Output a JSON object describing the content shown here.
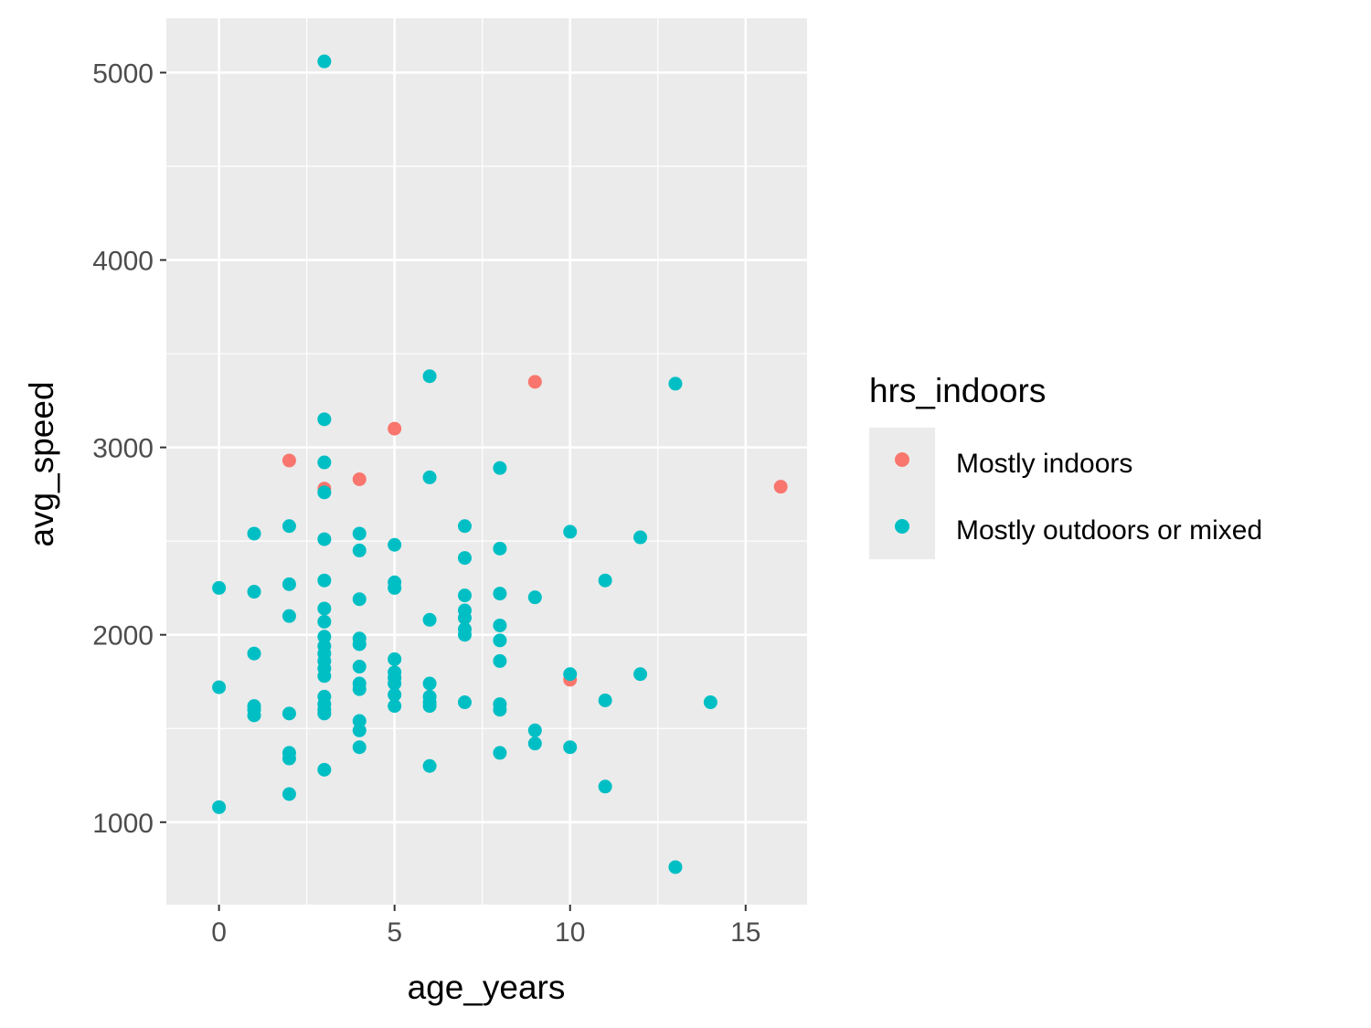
{
  "chart_data": {
    "type": "scatter",
    "xlabel": "age_years",
    "ylabel": "avg_speed",
    "xlim": [
      -1.5,
      16.75
    ],
    "ylim": [
      560,
      5290
    ],
    "x_ticks": [
      0,
      5,
      10,
      15
    ],
    "y_ticks": [
      1000,
      2000,
      3000,
      4000,
      5000
    ],
    "grid": true,
    "legend": {
      "title": "hrs_indoors",
      "position": "right",
      "entries": [
        {
          "label": "Mostly indoors",
          "color": "#F8766D"
        },
        {
          "label": "Mostly outdoors or mixed",
          "color": "#00BFC4"
        }
      ]
    },
    "series": [
      {
        "name": "Mostly indoors",
        "color": "#F8766D",
        "points": [
          [
            2,
            2930
          ],
          [
            3,
            2780
          ],
          [
            4,
            2830
          ],
          [
            5,
            3100
          ],
          [
            9,
            3350
          ],
          [
            10,
            1760
          ],
          [
            16,
            2790
          ]
        ]
      },
      {
        "name": "Mostly outdoors or mixed",
        "color": "#00BFC4",
        "points": [
          [
            0,
            2250
          ],
          [
            0,
            1720
          ],
          [
            0,
            1080
          ],
          [
            1,
            2540
          ],
          [
            1,
            2230
          ],
          [
            1,
            1900
          ],
          [
            1,
            1620
          ],
          [
            1,
            1600
          ],
          [
            1,
            1570
          ],
          [
            2,
            2580
          ],
          [
            2,
            2270
          ],
          [
            2,
            2100
          ],
          [
            2,
            1580
          ],
          [
            2,
            1370
          ],
          [
            2,
            1340
          ],
          [
            2,
            1150
          ],
          [
            3,
            5060
          ],
          [
            3,
            3150
          ],
          [
            3,
            2920
          ],
          [
            3,
            2760
          ],
          [
            3,
            2510
          ],
          [
            3,
            2290
          ],
          [
            3,
            2140
          ],
          [
            3,
            2070
          ],
          [
            3,
            1990
          ],
          [
            3,
            1940
          ],
          [
            3,
            1900
          ],
          [
            3,
            1860
          ],
          [
            3,
            1820
          ],
          [
            3,
            1780
          ],
          [
            3,
            1670
          ],
          [
            3,
            1630
          ],
          [
            3,
            1600
          ],
          [
            3,
            1580
          ],
          [
            3,
            1280
          ],
          [
            4,
            2540
          ],
          [
            4,
            2450
          ],
          [
            4,
            2190
          ],
          [
            4,
            1980
          ],
          [
            4,
            1950
          ],
          [
            4,
            1830
          ],
          [
            4,
            1740
          ],
          [
            4,
            1710
          ],
          [
            4,
            1540
          ],
          [
            4,
            1490
          ],
          [
            4,
            1400
          ],
          [
            5,
            2480
          ],
          [
            5,
            2280
          ],
          [
            5,
            2250
          ],
          [
            5,
            1870
          ],
          [
            5,
            1800
          ],
          [
            5,
            1770
          ],
          [
            5,
            1740
          ],
          [
            5,
            1680
          ],
          [
            5,
            1620
          ],
          [
            6,
            3380
          ],
          [
            6,
            2840
          ],
          [
            6,
            2080
          ],
          [
            6,
            1740
          ],
          [
            6,
            1670
          ],
          [
            6,
            1640
          ],
          [
            6,
            1620
          ],
          [
            6,
            1300
          ],
          [
            7,
            2580
          ],
          [
            7,
            2410
          ],
          [
            7,
            2210
          ],
          [
            7,
            2130
          ],
          [
            7,
            2090
          ],
          [
            7,
            2030
          ],
          [
            7,
            2000
          ],
          [
            7,
            1640
          ],
          [
            8,
            2890
          ],
          [
            8,
            2460
          ],
          [
            8,
            2220
          ],
          [
            8,
            2050
          ],
          [
            8,
            1970
          ],
          [
            8,
            1860
          ],
          [
            8,
            1630
          ],
          [
            8,
            1600
          ],
          [
            8,
            1370
          ],
          [
            9,
            2200
          ],
          [
            9,
            1490
          ],
          [
            9,
            1420
          ],
          [
            10,
            2550
          ],
          [
            10,
            1790
          ],
          [
            10,
            1400
          ],
          [
            11,
            2290
          ],
          [
            11,
            1650
          ],
          [
            11,
            1190
          ],
          [
            12,
            2520
          ],
          [
            12,
            1790
          ],
          [
            13,
            3340
          ],
          [
            13,
            760
          ],
          [
            14,
            1640
          ]
        ]
      }
    ]
  }
}
